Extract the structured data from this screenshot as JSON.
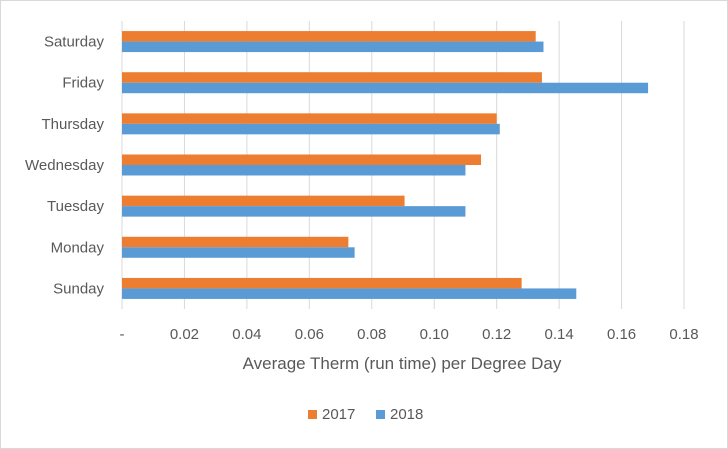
{
  "chart_data": {
    "type": "bar",
    "orientation": "horizontal",
    "categories": [
      "Sunday",
      "Monday",
      "Tuesday",
      "Wednesday",
      "Thursday",
      "Friday",
      "Saturday"
    ],
    "series": [
      {
        "name": "2017",
        "color": "#ed7d31",
        "values": [
          0.128,
          0.0725,
          0.0905,
          0.115,
          0.12,
          0.1345,
          0.1325
        ]
      },
      {
        "name": "2018",
        "color": "#5b9bd5",
        "values": [
          0.1455,
          0.0745,
          0.11,
          0.11,
          0.121,
          0.1685,
          0.135
        ]
      }
    ],
    "x_ticks": [
      "-",
      "0.02",
      "0.04",
      "0.06",
      "0.08",
      "0.10",
      "0.12",
      "0.14",
      "0.16",
      "0.18"
    ],
    "xlim": [
      0,
      0.18
    ],
    "xlabel": "Average Therm (run time) per Degree Day",
    "ylabel": "",
    "title": "",
    "grid": true,
    "legend": "bottom"
  }
}
